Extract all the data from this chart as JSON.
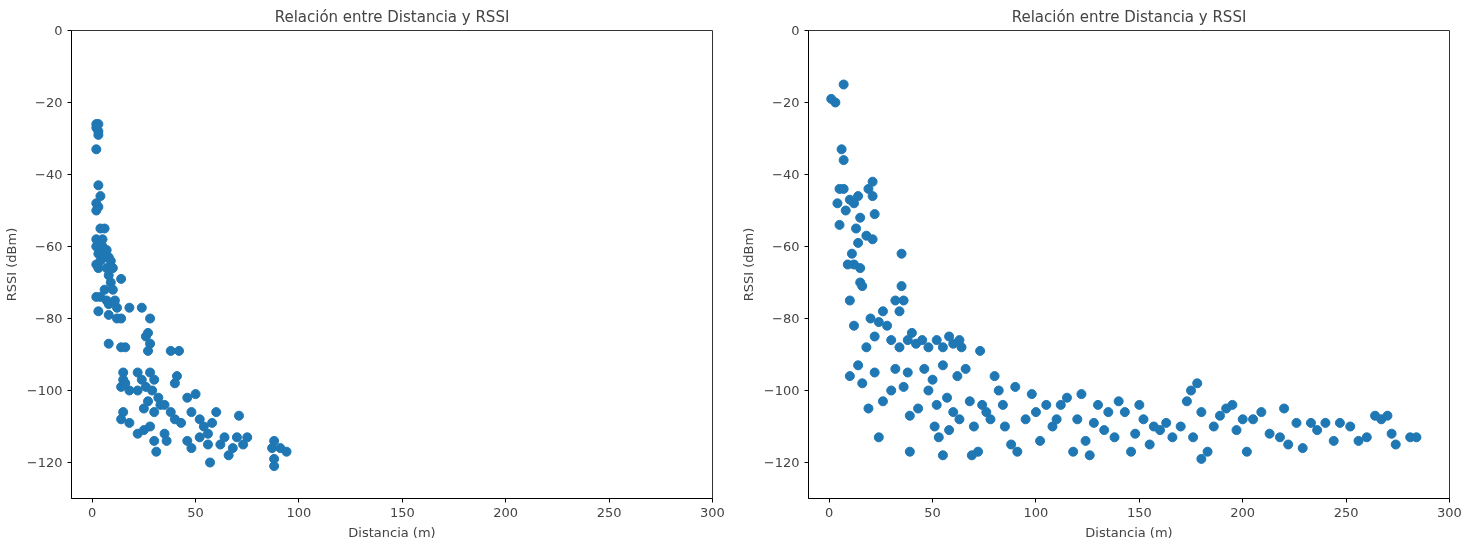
{
  "chart_data": [
    {
      "type": "scatter",
      "title": "Relación entre Distancia y RSSI",
      "xlabel": "Distancia (m)",
      "ylabel": "RSSI (dBm)",
      "marker": "circle",
      "xlim": [
        -10,
        300
      ],
      "ylim": [
        -130,
        0
      ],
      "xticks": [
        0,
        50,
        100,
        150,
        200,
        250,
        300
      ],
      "yticks": [
        -120,
        -100,
        -80,
        -60,
        -40,
        -20,
        0
      ],
      "series": [
        {
          "color": "#1f77b4",
          "x": [
            2,
            2,
            3,
            3,
            3,
            2,
            3,
            4,
            2,
            2,
            3,
            4,
            6,
            2,
            2,
            3,
            4,
            5,
            2,
            3,
            5,
            6,
            7,
            8,
            7,
            8,
            9,
            10,
            9,
            10,
            6,
            4,
            7,
            8,
            2,
            3,
            11,
            12,
            14,
            12,
            8,
            14,
            18,
            24,
            8,
            14,
            16,
            26,
            28,
            27,
            28,
            27,
            38,
            42,
            15,
            15,
            14,
            16,
            18,
            22,
            24,
            22,
            26,
            28,
            30,
            29,
            32,
            27,
            25,
            30,
            33,
            35,
            40,
            41,
            38,
            15,
            14,
            18,
            22,
            25,
            28,
            30,
            31,
            35,
            36,
            40,
            43,
            46,
            48,
            50,
            52,
            54,
            48,
            52,
            56,
            57,
            60,
            58,
            62,
            64,
            66,
            68,
            70,
            71,
            73,
            75,
            87,
            88,
            88,
            88,
            91,
            94,
            46,
            56
          ],
          "values": [
            -26,
            -27,
            -28,
            -26,
            -29,
            -33,
            -43,
            -46,
            -48,
            -50,
            -49,
            -55,
            -55,
            -58,
            -60,
            -62,
            -64,
            -58,
            -65,
            -66,
            -60,
            -63,
            -61,
            -63,
            -66,
            -68,
            -64,
            -66,
            -70,
            -72,
            -72,
            -74,
            -75,
            -76,
            -74,
            -78,
            -75,
            -77,
            -69,
            -80,
            -79,
            -80,
            -77,
            -77,
            -87,
            -88,
            -88,
            -85,
            -80,
            -84,
            -87,
            -89,
            -89,
            -89,
            -95,
            -97,
            -99,
            -98,
            -100,
            -95,
            -97,
            -100,
            -99,
            -95,
            -97,
            -100,
            -102,
            -103,
            -105,
            -106,
            -104,
            -104,
            -98,
            -96,
            -106,
            -106,
            -108,
            -109,
            -112,
            -111,
            -110,
            -114,
            -117,
            -112,
            -114,
            -108,
            -109,
            -102,
            -106,
            -101,
            -108,
            -110,
            -116,
            -113,
            -112,
            -120,
            -106,
            -109,
            -115,
            -113,
            -118,
            -116,
            -113,
            -107,
            -115,
            -113,
            -116,
            -114,
            -119,
            -121,
            -116,
            -117,
            -114,
            -115
          ]
        }
      ]
    },
    {
      "type": "scatter",
      "title": "Relación entre Distancia y RSSI",
      "xlabel": "Distancia (m)",
      "ylabel": "RSSI (dBm)",
      "marker": "circle",
      "xlim": [
        -10,
        300
      ],
      "ylim": [
        -130,
        0
      ],
      "xticks": [
        0,
        50,
        100,
        150,
        200,
        250,
        300
      ],
      "yticks": [
        -120,
        -100,
        -80,
        -60,
        -40,
        -20,
        0
      ],
      "series": [
        {
          "color": "#1f77b4",
          "x": [
            1,
            3,
            7,
            6,
            7,
            5,
            7,
            4,
            5,
            8,
            10,
            12,
            14,
            15,
            19,
            21,
            21,
            22,
            13,
            14,
            11,
            12,
            15,
            18,
            21,
            9,
            35,
            10,
            15,
            16,
            12,
            10,
            14,
            16,
            20,
            18,
            22,
            24,
            26,
            28,
            30,
            32,
            34,
            35,
            36,
            34,
            38,
            40,
            42,
            45,
            48,
            52,
            55,
            58,
            60,
            63,
            64,
            73,
            24,
            19,
            26,
            22,
            30,
            32,
            36,
            38,
            39,
            39,
            43,
            46,
            48,
            50,
            52,
            51,
            53,
            55,
            55,
            57,
            58,
            60,
            62,
            63,
            66,
            68,
            70,
            69,
            72,
            74,
            76,
            78,
            80,
            82,
            84,
            85,
            88,
            90,
            91,
            95,
            98,
            100,
            102,
            105,
            108,
            110,
            112,
            115,
            118,
            120,
            122,
            124,
            126,
            128,
            130,
            133,
            135,
            138,
            140,
            143,
            146,
            148,
            150,
            152,
            155,
            157,
            160,
            163,
            166,
            170,
            173,
            175,
            176,
            178,
            180,
            180,
            183,
            186,
            189,
            192,
            195,
            197,
            200,
            202,
            205,
            209,
            213,
            218,
            220,
            222,
            226,
            229,
            233,
            236,
            240,
            244,
            247,
            252,
            256,
            260,
            264,
            267,
            270,
            272,
            274,
            281,
            284
          ],
          "values": [
            -19,
            -20,
            -15,
            -33,
            -36,
            -44,
            -44,
            -48,
            -54,
            -50,
            -47,
            -48,
            -46,
            -52,
            -44,
            -42,
            -46,
            -51,
            -55,
            -59,
            -62,
            -65,
            -66,
            -57,
            -58,
            -65,
            -62,
            -75,
            -70,
            -71,
            -82,
            -96,
            -93,
            -98,
            -80,
            -88,
            -85,
            -81,
            -78,
            -82,
            -86,
            -75,
            -78,
            -71,
            -75,
            -88,
            -86,
            -84,
            -87,
            -86,
            -88,
            -86,
            -88,
            -85,
            -87,
            -86,
            -88,
            -89,
            -113,
            -105,
            -103,
            -95,
            -100,
            -94,
            -99,
            -95,
            -107,
            -117,
            -105,
            -94,
            -100,
            -97,
            -104,
            -110,
            -113,
            -118,
            -93,
            -102,
            -111,
            -106,
            -96,
            -108,
            -94,
            -103,
            -110,
            -118,
            -117,
            -104,
            -106,
            -108,
            -96,
            -100,
            -104,
            -110,
            -115,
            -99,
            -117,
            -108,
            -101,
            -106,
            -114,
            -104,
            -110,
            -108,
            -104,
            -102,
            -117,
            -108,
            -101,
            -114,
            -118,
            -109,
            -104,
            -111,
            -106,
            -113,
            -103,
            -106,
            -117,
            -112,
            -104,
            -108,
            -115,
            -110,
            -111,
            -109,
            -113,
            -110,
            -103,
            -100,
            -113,
            -98,
            -106,
            -119,
            -117,
            -110,
            -107,
            -105,
            -104,
            -111,
            -108,
            -117,
            -108,
            -106,
            -112,
            -113,
            -105,
            -115,
            -109,
            -116,
            -109,
            -111,
            -109,
            -114,
            -109,
            -110,
            -114,
            -113,
            -107,
            -108,
            -107,
            -112,
            -115,
            -113,
            -113
          ]
        }
      ]
    }
  ]
}
